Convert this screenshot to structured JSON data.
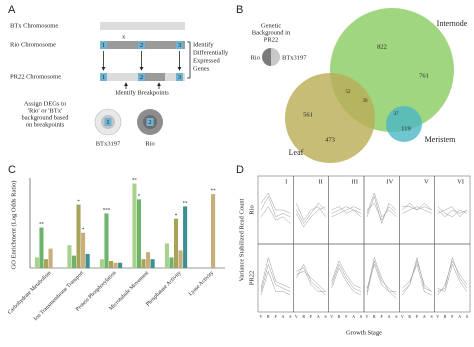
{
  "panel_a": {
    "letter": "A",
    "btx_chromosome": "BTx Chromosome",
    "cross": "x",
    "rio_chromosome": "Rio Chromosome",
    "pr22_chromosome": "PR22 Chromosome",
    "markers": [
      "1",
      "2",
      "3"
    ],
    "identify_degs": [
      "Identify",
      "Differentially",
      "Expressed",
      "Genes"
    ],
    "identify_breakpoints": "Identify Breakpoints",
    "assign": [
      "Assign DEGs to",
      "'Rio' or 'BTx'",
      "background based",
      "on breakpoints"
    ],
    "btx_label": "BTx3197",
    "rio_label": "Rio"
  },
  "panel_b": {
    "letter": "B",
    "background_title": [
      "Genetic",
      "Background in",
      "PR22"
    ],
    "rio": "Rio",
    "btx": "BTx3197",
    "internode": "Internode",
    "leaf": "Leaf",
    "meristem": "Meristem",
    "counts": [
      822,
      761,
      561,
      473,
      52,
      39,
      37,
      119
    ]
  },
  "panel_c": {
    "letter": "C",
    "type": "bar",
    "y_label": "GO Enrichment (Log Odds Ratio)",
    "categories": [
      "Carbohydrate Metabolism",
      "Ion Transmembrane Transport",
      "Protein Phosphorylation",
      "Microtubule Movement",
      "Phosphatase Activity",
      "Lyase Activity"
    ],
    "ylim": [
      0,
      5
    ],
    "series": [
      {
        "color": "#a9d18e",
        "values": [
          0.6,
          1.3,
          0.5,
          4.8,
          1.4,
          0
        ],
        "stars": [
          null,
          null,
          null,
          "**",
          null,
          null
        ]
      },
      {
        "color": "#6db36a",
        "values": [
          2.3,
          0.7,
          3.1,
          3.9,
          0.6,
          0
        ],
        "stars": [
          "**",
          null,
          "***",
          "*",
          null,
          null
        ]
      },
      {
        "color": "#a9a25a",
        "values": [
          0.5,
          3.6,
          0.4,
          0.5,
          2.8,
          0
        ],
        "stars": [
          null,
          "*",
          null,
          null,
          "*",
          null
        ]
      },
      {
        "color": "#c9ae7a",
        "values": [
          1.1,
          2.0,
          0.3,
          0.9,
          1.0,
          4.2
        ],
        "stars": [
          null,
          "*",
          null,
          null,
          null,
          "**"
        ]
      },
      {
        "color": "#3c8f93",
        "values": [
          0,
          0.8,
          0.3,
          0.5,
          3.5,
          0
        ],
        "stars": [
          null,
          null,
          null,
          null,
          "**",
          null
        ]
      }
    ]
  },
  "panel_d": {
    "letter": "D",
    "type": "line",
    "y_label": "Variance Stabilized Read Count",
    "x_label": "Growth Stage",
    "rows": [
      "Rio",
      "PR22"
    ],
    "categories": [
      "V",
      "R",
      "F",
      "A",
      "S"
    ],
    "ylim": [
      0,
      1
    ],
    "clusters": [
      {
        "label": "I",
        "lines": [
          [
            [
              0.5,
              0.7,
              0.4,
              0.45,
              0.4
            ],
            [
              0.6,
              0.75,
              0.5,
              0.5,
              0.45
            ],
            [
              0.4,
              0.55,
              0.35,
              0.4,
              0.3
            ]
          ],
          [
            [
              0.3,
              0.7,
              0.4,
              0.35,
              0.3
            ],
            [
              0.35,
              0.8,
              0.45,
              0.4,
              0.35
            ],
            [
              0.25,
              0.6,
              0.3,
              0.3,
              0.25
            ]
          ]
        ]
      },
      {
        "label": "II",
        "lines": [
          [
            [
              0.5,
              0.3,
              0.45,
              0.6,
              0.5
            ],
            [
              0.6,
              0.35,
              0.5,
              0.55,
              0.4
            ],
            [
              0.45,
              0.25,
              0.4,
              0.5,
              0.55
            ]
          ],
          [
            [
              0.6,
              0.65,
              0.4,
              0.3,
              0.3
            ],
            [
              0.5,
              0.7,
              0.45,
              0.35,
              0.25
            ],
            [
              0.55,
              0.6,
              0.5,
              0.4,
              0.3
            ]
          ]
        ]
      },
      {
        "label": "III",
        "lines": [
          [
            [
              0.45,
              0.5,
              0.55,
              0.5,
              0.45
            ],
            [
              0.4,
              0.45,
              0.5,
              0.55,
              0.5
            ],
            [
              0.5,
              0.55,
              0.45,
              0.5,
              0.4
            ]
          ],
          [
            [
              0.4,
              0.7,
              0.5,
              0.35,
              0.3
            ],
            [
              0.35,
              0.65,
              0.45,
              0.3,
              0.25
            ],
            [
              0.45,
              0.75,
              0.55,
              0.4,
              0.35
            ]
          ]
        ]
      },
      {
        "label": "IV",
        "lines": [
          [
            [
              0.4,
              0.7,
              0.3,
              0.6,
              0.5
            ],
            [
              0.5,
              0.6,
              0.35,
              0.55,
              0.45
            ],
            [
              0.45,
              0.75,
              0.4,
              0.5,
              0.4
            ]
          ],
          [
            [
              0.3,
              0.8,
              0.5,
              0.3,
              0.3
            ],
            [
              0.25,
              0.75,
              0.45,
              0.35,
              0.25
            ],
            [
              0.35,
              0.7,
              0.4,
              0.3,
              0.2
            ]
          ]
        ]
      },
      {
        "label": "V",
        "lines": [
          [
            [
              0.5,
              0.6,
              0.5,
              0.6,
              0.5
            ],
            [
              0.45,
              0.5,
              0.55,
              0.5,
              0.45
            ],
            [
              0.55,
              0.55,
              0.5,
              0.55,
              0.5
            ]
          ],
          [
            [
              0.3,
              0.4,
              0.8,
              0.35,
              0.3
            ],
            [
              0.35,
              0.45,
              0.7,
              0.3,
              0.25
            ],
            [
              0.25,
              0.4,
              0.75,
              0.4,
              0.3
            ]
          ]
        ]
      },
      {
        "label": "VI",
        "lines": [
          [
            [
              0.5,
              0.4,
              0.5,
              0.45,
              0.5
            ],
            [
              0.55,
              0.45,
              0.4,
              0.5,
              0.45
            ],
            [
              0.45,
              0.5,
              0.55,
              0.4,
              0.5
            ]
          ],
          [
            [
              0.3,
              0.35,
              0.8,
              0.5,
              0.35
            ],
            [
              0.35,
              0.3,
              0.7,
              0.45,
              0.3
            ],
            [
              0.25,
              0.4,
              0.75,
              0.55,
              0.4
            ]
          ]
        ]
      }
    ]
  }
}
